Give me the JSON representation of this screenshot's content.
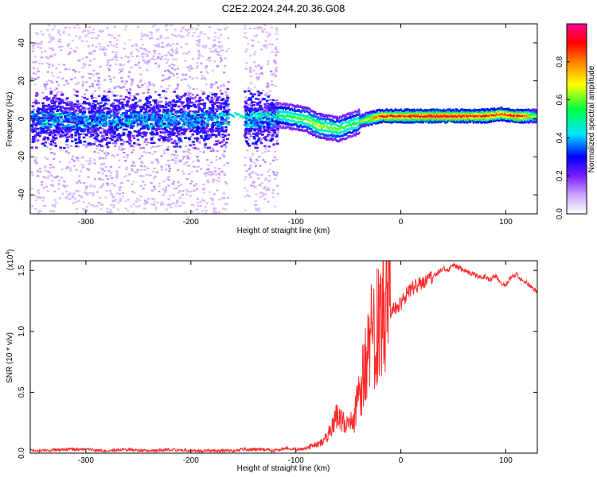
{
  "figure_title": "C2E2.2024.244.20.36.G08",
  "colors": {
    "snr_line": "#ff2a2a",
    "axes": "#000000",
    "background": "#ffffff"
  },
  "colorbar": {
    "label": "Normalized spectral amplitude",
    "ticks": [
      "0.0",
      "0.2",
      "0.4",
      "0.6",
      "0.8"
    ],
    "tick_values": [
      0.0,
      0.2,
      0.4,
      0.6,
      0.8
    ],
    "range": [
      0,
      1
    ],
    "colormap": [
      "#ffffff",
      "#7a1cff",
      "#0000ff",
      "#00e6ff",
      "#00ff00",
      "#ffff00",
      "#ff8000",
      "#ff0000",
      "#ff0080"
    ]
  },
  "chart_data": [
    {
      "type": "heatmap",
      "name": "spectrogram",
      "title": "C2E2.2024.244.20.36.G08",
      "xlabel": "Height of straight line (km)",
      "ylabel": "Frequency (Hz)",
      "xlim": [
        -353,
        130
      ],
      "ylim": [
        -50,
        50
      ],
      "xticks": [
        -300,
        -200,
        -100,
        0,
        100
      ],
      "xtick_labels": [
        "-300",
        "-200",
        "-100",
        "0",
        "100"
      ],
      "yticks": [
        -40,
        -20,
        0,
        20,
        40
      ],
      "ytick_labels": [
        "-40",
        "-20",
        "0",
        "20",
        "40"
      ],
      "noise_regions": [
        {
          "x_range": [
            -353,
            -165
          ],
          "description": "scattered low-amplitude noise across all frequencies"
        },
        {
          "x_range": [
            -150,
            -118
          ],
          "description": "scattered low-amplitude noise"
        }
      ],
      "signal_ridge": {
        "x": [
          -353,
          -300,
          -250,
          -200,
          -165,
          -130,
          -110,
          -90,
          -80,
          -70,
          -60,
          -45,
          -35,
          -20,
          0,
          40,
          80,
          95,
          110,
          130
        ],
        "freq_hz": [
          1,
          0,
          1,
          1,
          2,
          3,
          2,
          0,
          -3,
          -4,
          -5,
          -2,
          0,
          2,
          2,
          2,
          2,
          3,
          2,
          2
        ],
        "amplitude": [
          0.3,
          0.35,
          0.35,
          0.35,
          0.45,
          0.45,
          0.55,
          0.6,
          0.65,
          0.6,
          0.6,
          0.55,
          0.65,
          0.9,
          0.92,
          0.95,
          0.9,
          0.85,
          0.95,
          0.6
        ]
      }
    },
    {
      "type": "line",
      "name": "snr",
      "xlabel": "Height of straight line (km)",
      "ylabel": "SNR (10 * v/v)",
      "y_scale_label": "(x10",
      "y_scale_exponent": "4",
      "y_scale_suffix": ")",
      "xlim": [
        -353,
        130
      ],
      "ylim": [
        0,
        1.58
      ],
      "xticks": [
        -300,
        -200,
        -100,
        0,
        100
      ],
      "xtick_labels": [
        "-300",
        "-200",
        "-100",
        "0",
        "100"
      ],
      "yticks": [
        0.0,
        0.5,
        1.0,
        1.5
      ],
      "ytick_labels": [
        "0.0",
        "0.5",
        "1.0",
        "1.5"
      ],
      "series": [
        {
          "name": "SNR",
          "x": [
            -353,
            -340,
            -320,
            -300,
            -280,
            -260,
            -240,
            -220,
            -200,
            -180,
            -160,
            -150,
            -140,
            -130,
            -120,
            -110,
            -100,
            -90,
            -80,
            -75,
            -70,
            -65,
            -60,
            -55,
            -50,
            -45,
            -40,
            -35,
            -30,
            -25,
            -20,
            -15,
            -10,
            -5,
            0,
            5,
            10,
            15,
            20,
            25,
            30,
            35,
            40,
            45,
            50,
            55,
            60,
            65,
            70,
            75,
            80,
            85,
            90,
            95,
            100,
            105,
            110,
            115,
            120,
            125,
            130
          ],
          "values": [
            0.02,
            0.02,
            0.03,
            0.03,
            0.02,
            0.03,
            0.02,
            0.03,
            0.02,
            0.02,
            0.02,
            0.03,
            0.03,
            0.03,
            0.02,
            0.04,
            0.03,
            0.04,
            0.06,
            0.08,
            0.12,
            0.18,
            0.28,
            0.22,
            0.18,
            0.25,
            0.35,
            0.55,
            0.75,
            0.85,
            1.0,
            1.08,
            1.15,
            1.2,
            1.22,
            1.3,
            1.35,
            1.38,
            1.4,
            1.43,
            1.45,
            1.48,
            1.52,
            1.5,
            1.55,
            1.52,
            1.5,
            1.48,
            1.47,
            1.45,
            1.45,
            1.42,
            1.46,
            1.4,
            1.38,
            1.45,
            1.47,
            1.42,
            1.4,
            1.36,
            1.32
          ]
        }
      ]
    }
  ]
}
